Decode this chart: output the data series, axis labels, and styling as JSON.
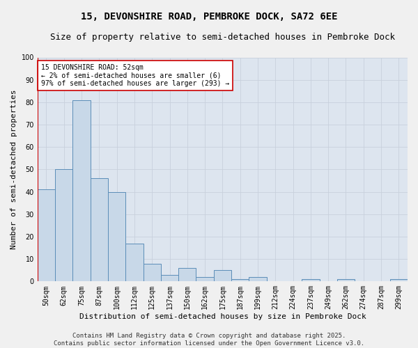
{
  "title1": "15, DEVONSHIRE ROAD, PEMBROKE DOCK, SA72 6EE",
  "title2": "Size of property relative to semi-detached houses in Pembroke Dock",
  "xlabel": "Distribution of semi-detached houses by size in Pembroke Dock",
  "ylabel": "Number of semi-detached properties",
  "categories": [
    "50sqm",
    "62sqm",
    "75sqm",
    "87sqm",
    "100sqm",
    "112sqm",
    "125sqm",
    "137sqm",
    "150sqm",
    "162sqm",
    "175sqm",
    "187sqm",
    "199sqm",
    "212sqm",
    "224sqm",
    "237sqm",
    "249sqm",
    "262sqm",
    "274sqm",
    "287sqm",
    "299sqm"
  ],
  "values": [
    41,
    50,
    81,
    46,
    40,
    17,
    8,
    3,
    6,
    2,
    5,
    1,
    2,
    0,
    0,
    1,
    0,
    1,
    0,
    0,
    1
  ],
  "bar_color": "#c8d8e8",
  "bar_edge_color": "#5b8db8",
  "subject_line_color": "#cc0000",
  "annotation_text": "15 DEVONSHIRE ROAD: 52sqm\n← 2% of semi-detached houses are smaller (6)\n97% of semi-detached houses are larger (293) →",
  "annotation_box_facecolor": "#ffffff",
  "annotation_box_edgecolor": "#cc0000",
  "ylim": [
    0,
    100
  ],
  "yticks": [
    0,
    10,
    20,
    30,
    40,
    50,
    60,
    70,
    80,
    90,
    100
  ],
  "grid_color": "#c8d0dc",
  "bg_color": "#dde5ef",
  "fig_bg_color": "#f0f0f0",
  "footer_text": "Contains HM Land Registry data © Crown copyright and database right 2025.\nContains public sector information licensed under the Open Government Licence v3.0.",
  "title_fontsize": 10,
  "subtitle_fontsize": 9,
  "axis_label_fontsize": 8,
  "tick_fontsize": 7,
  "annotation_fontsize": 7,
  "footer_fontsize": 6.5
}
